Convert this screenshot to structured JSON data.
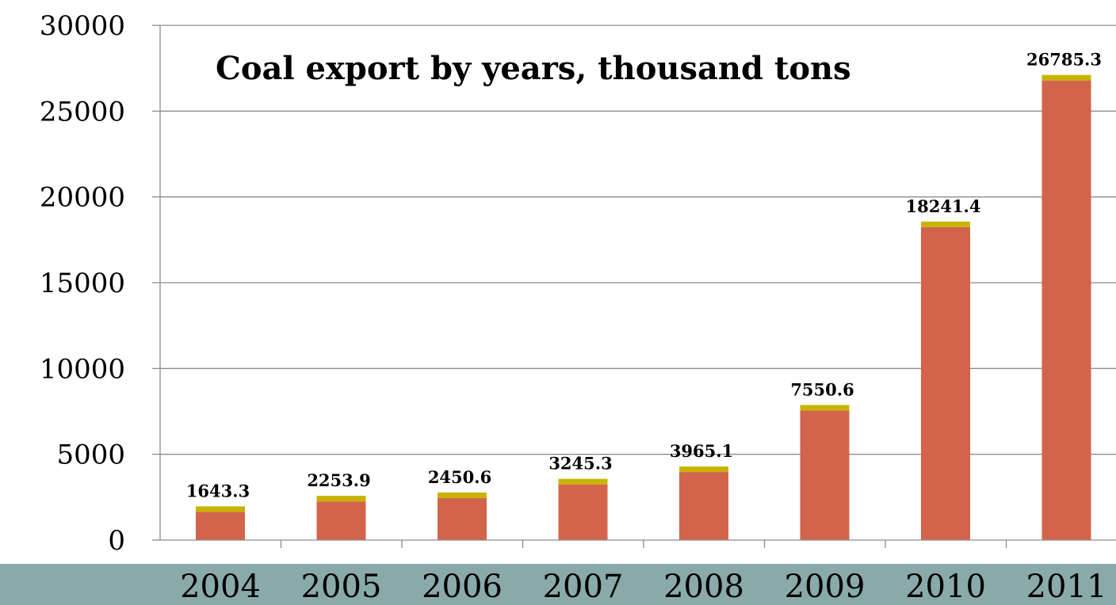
{
  "chart_data": {
    "type": "bar",
    "title": "Coal export by years, thousand tons",
    "categories": [
      "2004",
      "2005",
      "2006",
      "2007",
      "2008",
      "2009",
      "2010",
      "2011"
    ],
    "values": [
      1643.3,
      2253.9,
      2450.6,
      3245.3,
      3965.1,
      7550.6,
      18241.4,
      26785.3
    ],
    "data_labels": [
      "1643.3",
      "2253.9",
      "2450.6",
      "3245.3",
      "3965.1",
      "7550.6",
      "18241.4",
      "26785.3"
    ],
    "ylim": [
      0,
      30000
    ],
    "yticks": [
      0,
      5000,
      10000,
      15000,
      20000,
      25000,
      30000
    ],
    "xlabel": "",
    "ylabel": "",
    "grid": true,
    "colors": {
      "bar": "#d2644b",
      "bar_cap": "#c8b400",
      "grid": "#8c8c8c",
      "bottom_band": "#8aaaaa"
    }
  }
}
